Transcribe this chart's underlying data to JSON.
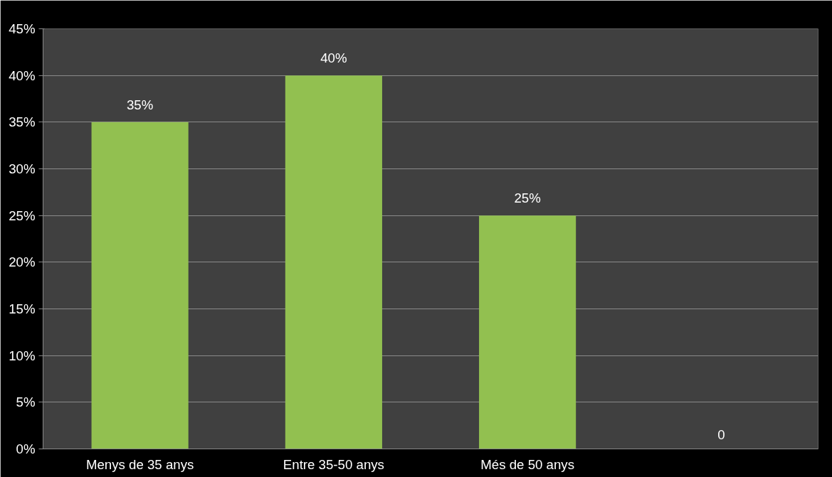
{
  "chart_data": {
    "type": "bar",
    "categories": [
      "Menys de 35 anys",
      "Entre 35-50 anys",
      "Més de 50 anys",
      null
    ],
    "values": [
      35,
      40,
      25,
      0
    ],
    "value_labels": [
      "35%",
      "40%",
      "25%",
      "0"
    ],
    "color": "#92c050",
    "ylim": [
      0,
      45
    ],
    "yticks": [
      {
        "value": 0,
        "label": "0%"
      },
      {
        "value": 5,
        "label": "5%"
      },
      {
        "value": 10,
        "label": "10%"
      },
      {
        "value": 15,
        "label": "15%"
      },
      {
        "value": 20,
        "label": "20%"
      },
      {
        "value": 25,
        "label": "25%"
      },
      {
        "value": 30,
        "label": "30%"
      },
      {
        "value": 35,
        "label": "35%"
      },
      {
        "value": 40,
        "label": "40%"
      },
      {
        "value": 45,
        "label": "45%"
      }
    ],
    "grid": "y"
  }
}
